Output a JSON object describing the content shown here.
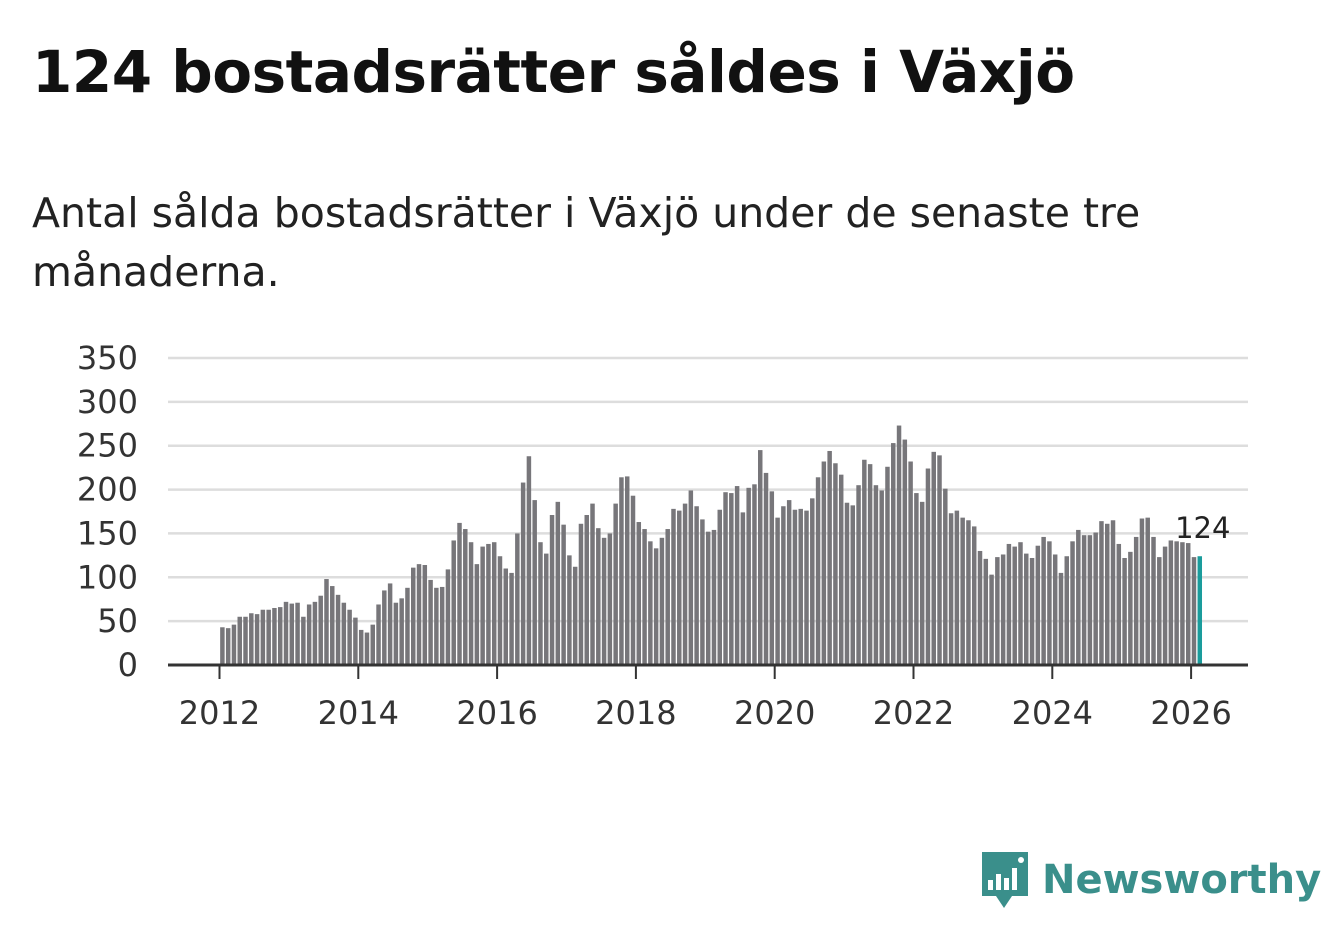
{
  "title": "124 bostadsrätter såldes i Växjö",
  "subtitle": "Antal sålda bostadsrätter i Växjö under de senaste tre månaderna.",
  "brand": {
    "name": "Newsworthy",
    "color": "#3a8f8b"
  },
  "colors": {
    "bar": "#77767a",
    "highlight": "#1a9c9c",
    "grid": "#dddddd",
    "axis": "#333333"
  },
  "chart_data": {
    "type": "bar",
    "start": "2012-01",
    "frequency": "monthly",
    "xticks": [
      2012,
      2014,
      2016,
      2018,
      2020,
      2022,
      2024,
      2026
    ],
    "xtick_labels": [
      "2012",
      "2014",
      "2016",
      "2018",
      "2020",
      "2022",
      "2024",
      "2026"
    ],
    "ylim": [
      0,
      350
    ],
    "yticks": [
      0,
      50,
      100,
      150,
      200,
      250,
      300,
      350
    ],
    "ytick_labels": [
      "0",
      "50",
      "100",
      "150",
      "200",
      "250",
      "300",
      "350"
    ],
    "highlight_label": "124",
    "values": [
      43,
      42,
      46,
      55,
      55,
      59,
      58,
      63,
      63,
      65,
      66,
      72,
      70,
      71,
      55,
      69,
      72,
      79,
      98,
      90,
      80,
      71,
      63,
      54,
      40,
      37,
      46,
      69,
      85,
      93,
      71,
      76,
      88,
      111,
      115,
      114,
      97,
      88,
      89,
      109,
      142,
      162,
      155,
      140,
      115,
      135,
      138,
      140,
      124,
      110,
      105,
      150,
      208,
      238,
      188,
      140,
      127,
      171,
      186,
      160,
      125,
      112,
      161,
      171,
      184,
      156,
      145,
      150,
      184,
      214,
      215,
      193,
      163,
      155,
      141,
      133,
      145,
      155,
      178,
      176,
      184,
      199,
      181,
      166,
      152,
      154,
      177,
      197,
      196,
      204,
      174,
      202,
      206,
      245,
      219,
      198,
      168,
      181,
      188,
      177,
      178,
      176,
      190,
      214,
      232,
      244,
      230,
      217,
      185,
      182,
      205,
      234,
      229,
      205,
      199,
      226,
      253,
      273,
      257,
      232,
      196,
      186,
      224,
      243,
      239,
      201,
      173,
      176,
      168,
      165,
      158,
      130,
      121,
      103,
      123,
      126,
      138,
      135,
      140,
      127,
      122,
      136,
      146,
      141,
      126,
      105,
      124,
      141,
      154,
      148,
      148,
      151,
      164,
      161,
      165,
      138,
      122,
      129,
      146,
      167,
      168,
      146,
      123,
      135,
      142,
      141,
      140,
      139,
      123,
      124
    ]
  }
}
